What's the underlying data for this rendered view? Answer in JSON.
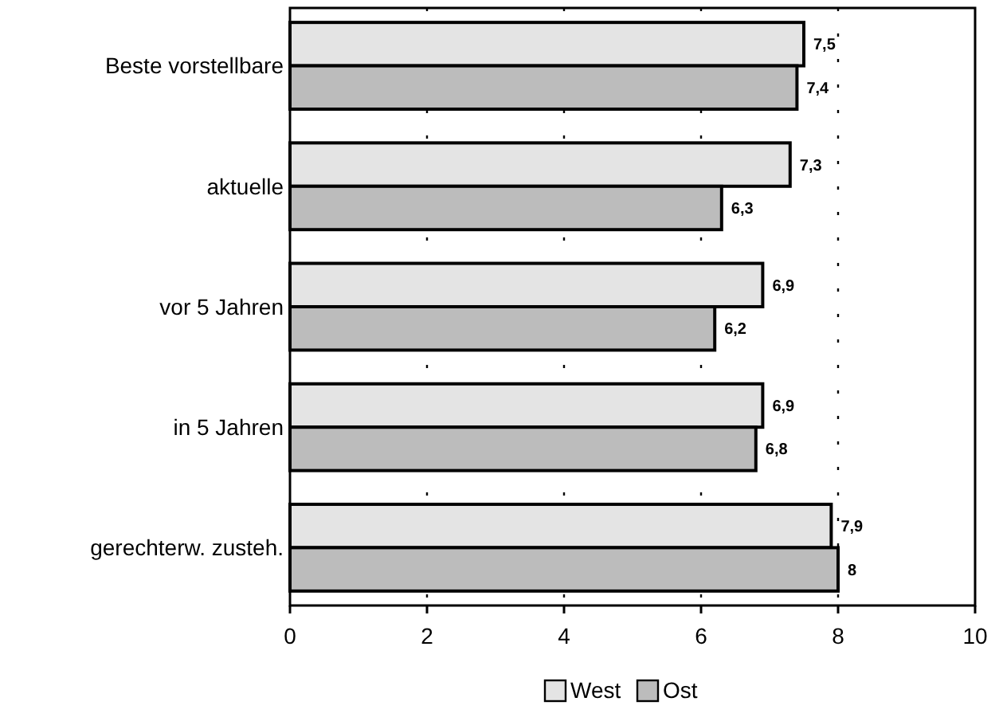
{
  "chart_data": {
    "type": "bar",
    "orientation": "horizontal",
    "categories": [
      "Beste vorstellbare",
      "aktuelle",
      "vor 5 Jahren",
      "in 5 Jahren",
      "gerechterw. zusteh."
    ],
    "series": [
      {
        "name": "West",
        "color": "#e4e4e4",
        "values": [
          7.5,
          7.3,
          6.9,
          6.9,
          7.9
        ],
        "value_labels": [
          "7,5",
          "7,3",
          "6,9",
          "6,9",
          "7,9"
        ]
      },
      {
        "name": "Ost",
        "color": "#bcbcbc",
        "values": [
          7.4,
          6.3,
          6.2,
          6.8,
          8
        ],
        "value_labels": [
          "7,4",
          "6,3",
          "6,2",
          "6,8",
          "8"
        ]
      }
    ],
    "xlim": [
      0,
      10
    ],
    "xticks": [
      0,
      2,
      4,
      6,
      8,
      10
    ],
    "grid": "x",
    "legend": "bottom"
  }
}
